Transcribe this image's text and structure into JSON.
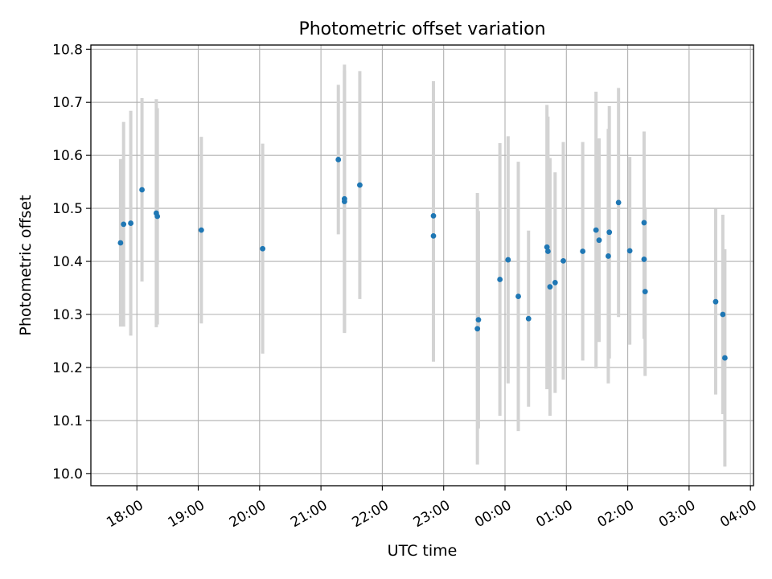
{
  "chart_data": {
    "type": "scatter",
    "title": "Photometric offset variation",
    "xlabel": "UTC time",
    "ylabel": "Photometric offset",
    "x_axis_kind": "time",
    "x_ticks": [
      "18:00",
      "19:00",
      "20:00",
      "21:00",
      "22:00",
      "23:00",
      "00:00",
      "01:00",
      "02:00",
      "03:00",
      "04:00"
    ],
    "x_tick_hours": [
      18,
      19,
      20,
      21,
      22,
      23,
      24,
      25,
      26,
      27,
      28
    ],
    "xlim_hours": [
      17.25,
      28.05
    ],
    "y_ticks": [
      10.0,
      10.1,
      10.2,
      10.3,
      10.4,
      10.5,
      10.6,
      10.7,
      10.8
    ],
    "ylim": [
      9.977,
      10.808
    ],
    "grid": true,
    "colors": {
      "point": "#1f77b4",
      "errorbar": "#d3d3d3",
      "grid": "#b0b0b0"
    },
    "points": [
      {
        "time": "17:44",
        "y": 10.435,
        "err": 0.158
      },
      {
        "time": "17:47",
        "y": 10.47,
        "err": 0.193
      },
      {
        "time": "17:54",
        "y": 10.472,
        "err": 0.212
      },
      {
        "time": "18:05",
        "y": 10.535,
        "err": 0.173
      },
      {
        "time": "18:19",
        "y": 10.491,
        "err": 0.215
      },
      {
        "time": "18:20",
        "y": 10.485,
        "err": 0.204
      },
      {
        "time": "19:03",
        "y": 10.459,
        "err": 0.176
      },
      {
        "time": "20:03",
        "y": 10.424,
        "err": 0.198
      },
      {
        "time": "21:17",
        "y": 10.592,
        "err": 0.141
      },
      {
        "time": "21:23",
        "y": 10.518,
        "err": 0.253
      },
      {
        "time": "21:23",
        "y": 10.513,
        "err": 0.247
      },
      {
        "time": "21:38",
        "y": 10.544,
        "err": 0.215
      },
      {
        "time": "22:50",
        "y": 10.486,
        "err": 0.254
      },
      {
        "time": "22:50",
        "y": 10.448,
        "err": 0.237
      },
      {
        "time": "23:33",
        "y": 10.273,
        "err": 0.256
      },
      {
        "time": "23:34",
        "y": 10.29,
        "err": 0.205
      },
      {
        "time": "23:55",
        "y": 10.366,
        "err": 0.257
      },
      {
        "time": "00:03",
        "y": 10.403,
        "err": 0.233
      },
      {
        "time": "00:13",
        "y": 10.334,
        "err": 0.254
      },
      {
        "time": "00:23",
        "y": 10.292,
        "err": 0.166
      },
      {
        "time": "00:41",
        "y": 10.427,
        "err": 0.268
      },
      {
        "time": "00:42",
        "y": 10.419,
        "err": 0.254
      },
      {
        "time": "00:44",
        "y": 10.352,
        "err": 0.243
      },
      {
        "time": "00:49",
        "y": 10.36,
        "err": 0.208
      },
      {
        "time": "00:57",
        "y": 10.401,
        "err": 0.224
      },
      {
        "time": "01:16",
        "y": 10.419,
        "err": 0.206
      },
      {
        "time": "01:29",
        "y": 10.459,
        "err": 0.261
      },
      {
        "time": "01:32",
        "y": 10.44,
        "err": 0.192
      },
      {
        "time": "01:41",
        "y": 10.41,
        "err": 0.24
      },
      {
        "time": "01:42",
        "y": 10.455,
        "err": 0.238
      },
      {
        "time": "01:51",
        "y": 10.511,
        "err": 0.216
      },
      {
        "time": "02:02",
        "y": 10.42,
        "err": 0.177
      },
      {
        "time": "02:16",
        "y": 10.473,
        "err": 0.172
      },
      {
        "time": "02:16",
        "y": 10.404,
        "err": 0.15
      },
      {
        "time": "02:17",
        "y": 10.343,
        "err": 0.159
      },
      {
        "time": "03:26",
        "y": 10.324,
        "err": 0.175
      },
      {
        "time": "03:33",
        "y": 10.3,
        "err": 0.188
      },
      {
        "time": "03:35",
        "y": 10.218,
        "err": 0.205
      }
    ]
  }
}
